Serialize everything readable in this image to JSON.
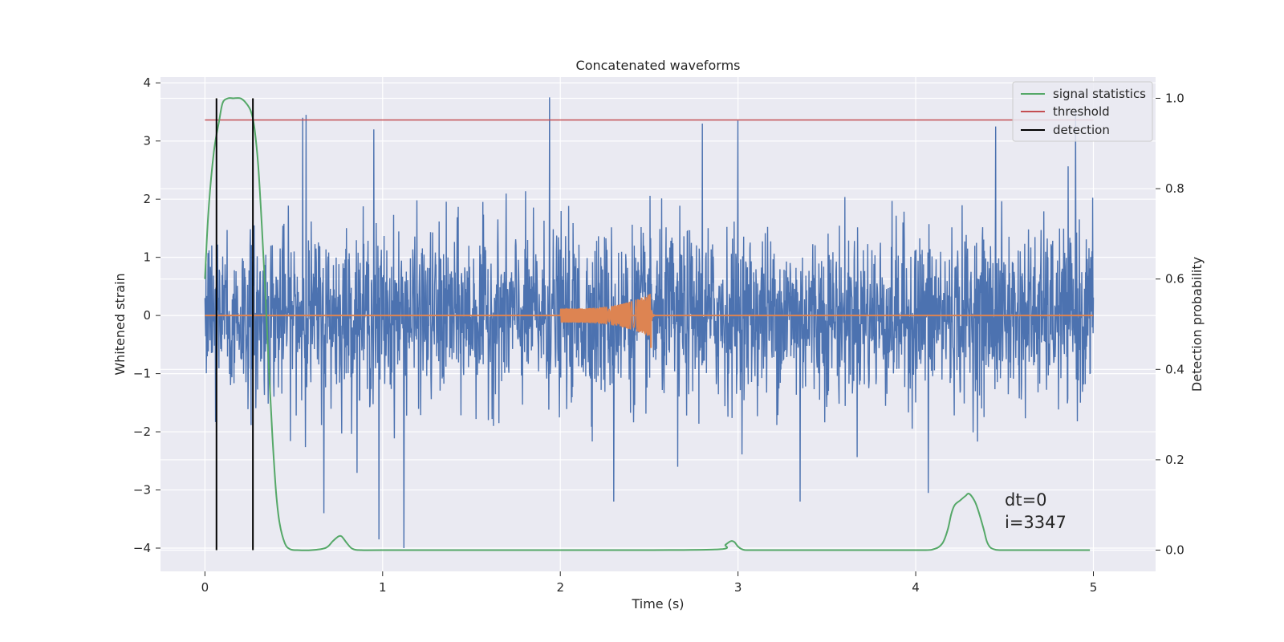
{
  "chart_data": {
    "type": "line",
    "title": "Concatenated waveforms",
    "xlabel": "Time (s)",
    "ylabel": "Whitened strain",
    "y2label": "Detection probability",
    "xlim": [
      -0.25,
      5.35
    ],
    "ylim": [
      -4.4,
      4.1
    ],
    "y2lim": [
      -0.047,
      1.047
    ],
    "xticks": [
      0,
      1,
      2,
      3,
      4,
      5
    ],
    "xtick_labels": [
      "0",
      "1",
      "2",
      "3",
      "4",
      "5"
    ],
    "yticks": [
      4,
      3,
      2,
      1,
      0,
      -1,
      -2,
      -3,
      -4
    ],
    "ytick_labels": [
      "4",
      "3",
      "2",
      "1",
      "0",
      "−1",
      "−2",
      "−3",
      "−4"
    ],
    "y2ticks": [
      1.0,
      0.8,
      0.6,
      0.4,
      0.2,
      0.0
    ],
    "y2tick_labels": [
      "1.0",
      "0.8",
      "0.6",
      "0.4",
      "0.2",
      "0.0"
    ],
    "grid": true,
    "legend_position": "top-right",
    "annotation": [
      "dt=0",
      "i=3347"
    ],
    "colors": {
      "strain": "#4c72b0",
      "injection": "#dd8452",
      "signal_statistics": "#55a868",
      "threshold": "#c44e52",
      "detection": "#000000",
      "background": "#eaeaf2",
      "grid": "#ffffff"
    },
    "series": [
      {
        "name": "signal statistics",
        "axis": "right",
        "x": [
          0.0,
          0.02,
          0.05,
          0.08,
          0.1,
          0.13,
          0.16,
          0.2,
          0.23,
          0.26,
          0.28,
          0.3,
          0.32,
          0.34,
          0.36,
          0.38,
          0.4,
          0.42,
          0.45,
          0.48,
          0.52,
          0.6,
          0.68,
          0.72,
          0.75,
          0.77,
          0.8,
          0.83,
          0.88,
          1.0,
          1.5,
          2.0,
          2.5,
          2.9,
          2.93,
          2.96,
          2.98,
          3.0,
          3.03,
          3.1,
          3.5,
          4.0,
          4.1,
          4.15,
          4.18,
          4.2,
          4.22,
          4.25,
          4.28,
          4.3,
          4.33,
          4.35,
          4.38,
          4.4,
          4.42,
          4.45,
          4.5,
          4.7,
          4.98
        ],
        "values": [
          0.6,
          0.75,
          0.88,
          0.95,
          0.99,
          1.0,
          1.0,
          1.0,
          0.99,
          0.97,
          0.93,
          0.85,
          0.72,
          0.57,
          0.4,
          0.25,
          0.13,
          0.06,
          0.015,
          0.002,
          0.0,
          0.0,
          0.005,
          0.02,
          0.03,
          0.03,
          0.015,
          0.003,
          0.0,
          0.0,
          0.0,
          0.0,
          0.0,
          0.002,
          0.012,
          0.02,
          0.018,
          0.008,
          0.001,
          0.0,
          0.0,
          0.0,
          0.002,
          0.015,
          0.045,
          0.08,
          0.1,
          0.11,
          0.12,
          0.125,
          0.11,
          0.09,
          0.05,
          0.02,
          0.006,
          0.001,
          0.0,
          0.0,
          0.0
        ]
      },
      {
        "name": "threshold",
        "axis": "right",
        "x": [
          0.0,
          5.0
        ],
        "values": [
          0.952,
          0.952
        ]
      },
      {
        "name": "detection",
        "axis": "right",
        "type": "vlines",
        "x": [
          0.065,
          0.27
        ],
        "values": [
          0.0,
          1.0
        ]
      },
      {
        "name": "",
        "axis": "left",
        "type": "noise",
        "x": [
          0.0,
          5.0
        ],
        "note_values": "whitened noise, typical range about ±1.5 with spikes; max 3.75 at x=1.94, min −4.0 at x=1.12",
        "peaks": [
          [
            0.55,
            3.4
          ],
          [
            0.57,
            3.45
          ],
          [
            0.95,
            3.2
          ],
          [
            1.94,
            3.75
          ],
          [
            2.8,
            3.3
          ],
          [
            3.0,
            3.35
          ],
          [
            4.45,
            3.25
          ],
          [
            4.9,
            3.55
          ],
          [
            0.67,
            -3.4
          ],
          [
            0.98,
            -3.85
          ],
          [
            1.12,
            -4.0
          ],
          [
            2.3,
            -3.2
          ],
          [
            3.35,
            -3.2
          ],
          [
            4.07,
            -3.05
          ],
          [
            2.66,
            -2.6
          ]
        ]
      },
      {
        "name": "",
        "axis": "left",
        "type": "chirp",
        "x": [
          2.0,
          2.52
        ],
        "amplitude_start": 0.12,
        "amplitude_peak": 0.38,
        "amplitude_peak_negative": -0.55,
        "peak_x": 2.51
      }
    ]
  }
}
